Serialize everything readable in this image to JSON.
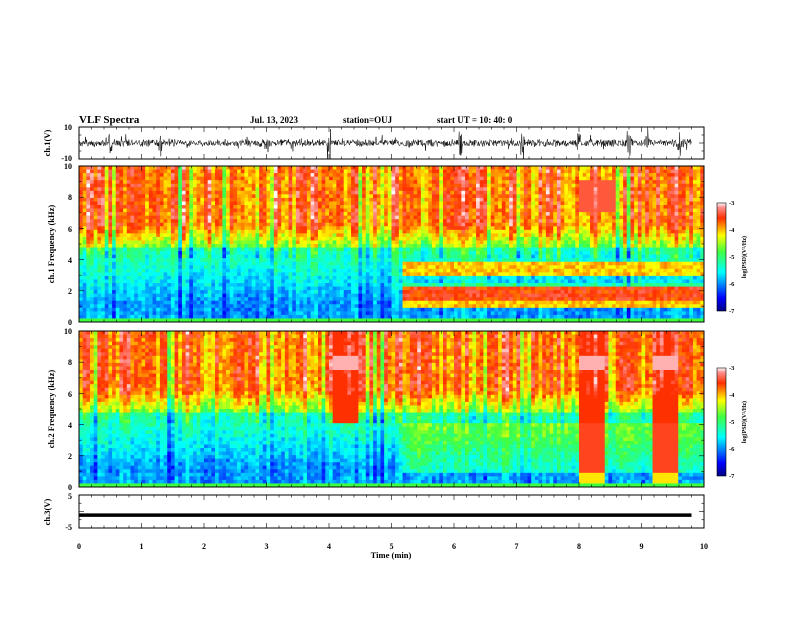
{
  "chart_data": {
    "type": "heatmap",
    "title": "VLF Spectra",
    "date": "Jul. 13, 2023",
    "station": "station=OUJ",
    "start_ut": "start UT =  10: 40: 0",
    "x_axis": {
      "label": "Time (min)",
      "range": [
        0,
        10
      ],
      "ticks": [
        "0",
        "1",
        "2",
        "3",
        "4",
        "5",
        "6",
        "7",
        "8",
        "9",
        "10"
      ]
    },
    "panels": [
      {
        "kind": "waveform",
        "ylabel": "ch.1(V)",
        "ylim": [
          -10,
          10
        ],
        "yticks": [
          "10",
          "-10"
        ],
        "data_end_min": 9.8,
        "burst_times_min": [
          0.5,
          1.3,
          3.0,
          3.4,
          4.0,
          6.1,
          7.1,
          8.0,
          8.8,
          9.1,
          9.6
        ]
      },
      {
        "kind": "spectrogram",
        "ylabel": "ch.1 Frequency (kHz)",
        "ylim": [
          0,
          10
        ],
        "yticks": [
          "0",
          "2",
          "4",
          "6",
          "8",
          "10"
        ],
        "colorbar": {
          "label": "log(PSD)(V²/Hz)",
          "range": [
            -7,
            -3
          ],
          "ticks": [
            "-3",
            "-4",
            "-5",
            "-6",
            "-7"
          ]
        },
        "emission_bands_khz": [
          3.6,
          3.2,
          2.0,
          1.6,
          1.1
        ],
        "band_onset_min": 5.2
      },
      {
        "kind": "spectrogram",
        "ylabel": "ch.2 Frequency (kHz)",
        "ylim": [
          0,
          10
        ],
        "yticks": [
          "0",
          "2",
          "4",
          "6",
          "8",
          "10"
        ],
        "colorbar": {
          "label": "log(PSD)(V²/Hz)",
          "range": [
            -7,
            -3
          ],
          "ticks": [
            "-3",
            "-4",
            "-5",
            "-6",
            "-7"
          ]
        },
        "intense_intervals_min": [
          [
            4.05,
            4.5
          ],
          [
            8.0,
            8.4
          ],
          [
            9.2,
            9.6
          ]
        ],
        "band_onset_min": 5.2
      },
      {
        "kind": "waveform",
        "ylabel": "ch.3(V)",
        "ylim": [
          -5,
          5
        ],
        "yticks": [
          "5",
          "-5"
        ],
        "constant_value": -1.1,
        "data_end_min": 9.8
      }
    ]
  }
}
